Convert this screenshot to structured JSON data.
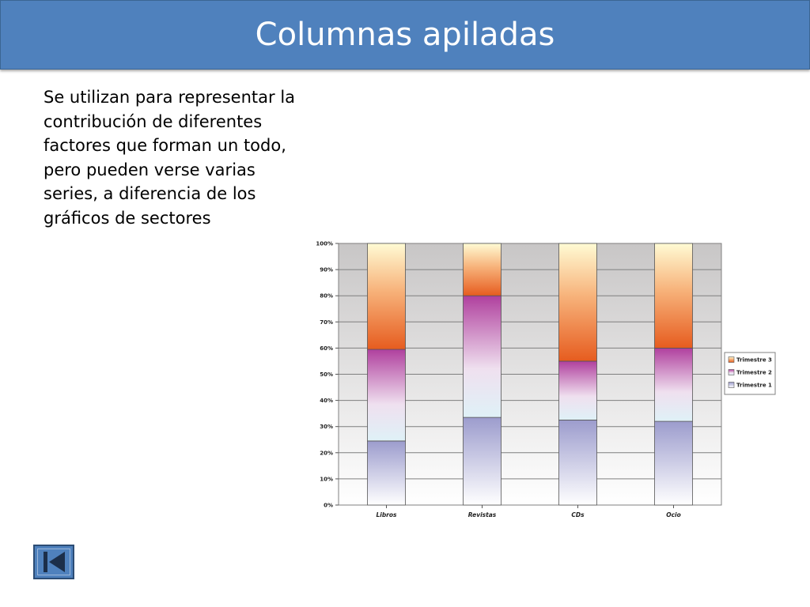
{
  "slide": {
    "title": "Columnas apiladas",
    "body": "Se utilizan para representar la contribución de diferentes factores que forman un todo, pero pueden verse varias series, a diferencia de los gráficos de sectores"
  },
  "nav": {
    "first_icon": "skip-to-first-icon"
  },
  "colors": {
    "title_bar": "#4f81bd",
    "trimestre_1": "#9c9ccd",
    "trimestre_2": "#b0409e",
    "trimestre_3": "#e65c1f"
  },
  "chart_data": {
    "type": "bar",
    "stacked": true,
    "percent": true,
    "categories": [
      "Libros",
      "Revistas",
      "CDs",
      "Ocio"
    ],
    "series": [
      {
        "name": "Trimestre 1",
        "values": [
          24.5,
          33.5,
          32.5,
          32
        ]
      },
      {
        "name": "Trimestre 2",
        "values": [
          35,
          46.5,
          22.5,
          28
        ]
      },
      {
        "name": "Trimestre 3",
        "values": [
          40.5,
          20,
          45,
          40
        ]
      }
    ],
    "legend_entries": [
      "Trimestre 3",
      "Trimestre 2",
      "Trimestre 1"
    ],
    "yticks": [
      "0%",
      "10%",
      "20%",
      "30%",
      "40%",
      "50%",
      "60%",
      "70%",
      "80%",
      "90%",
      "100%"
    ],
    "ylim": [
      0,
      100
    ],
    "grid": true,
    "legend_position": "right"
  }
}
